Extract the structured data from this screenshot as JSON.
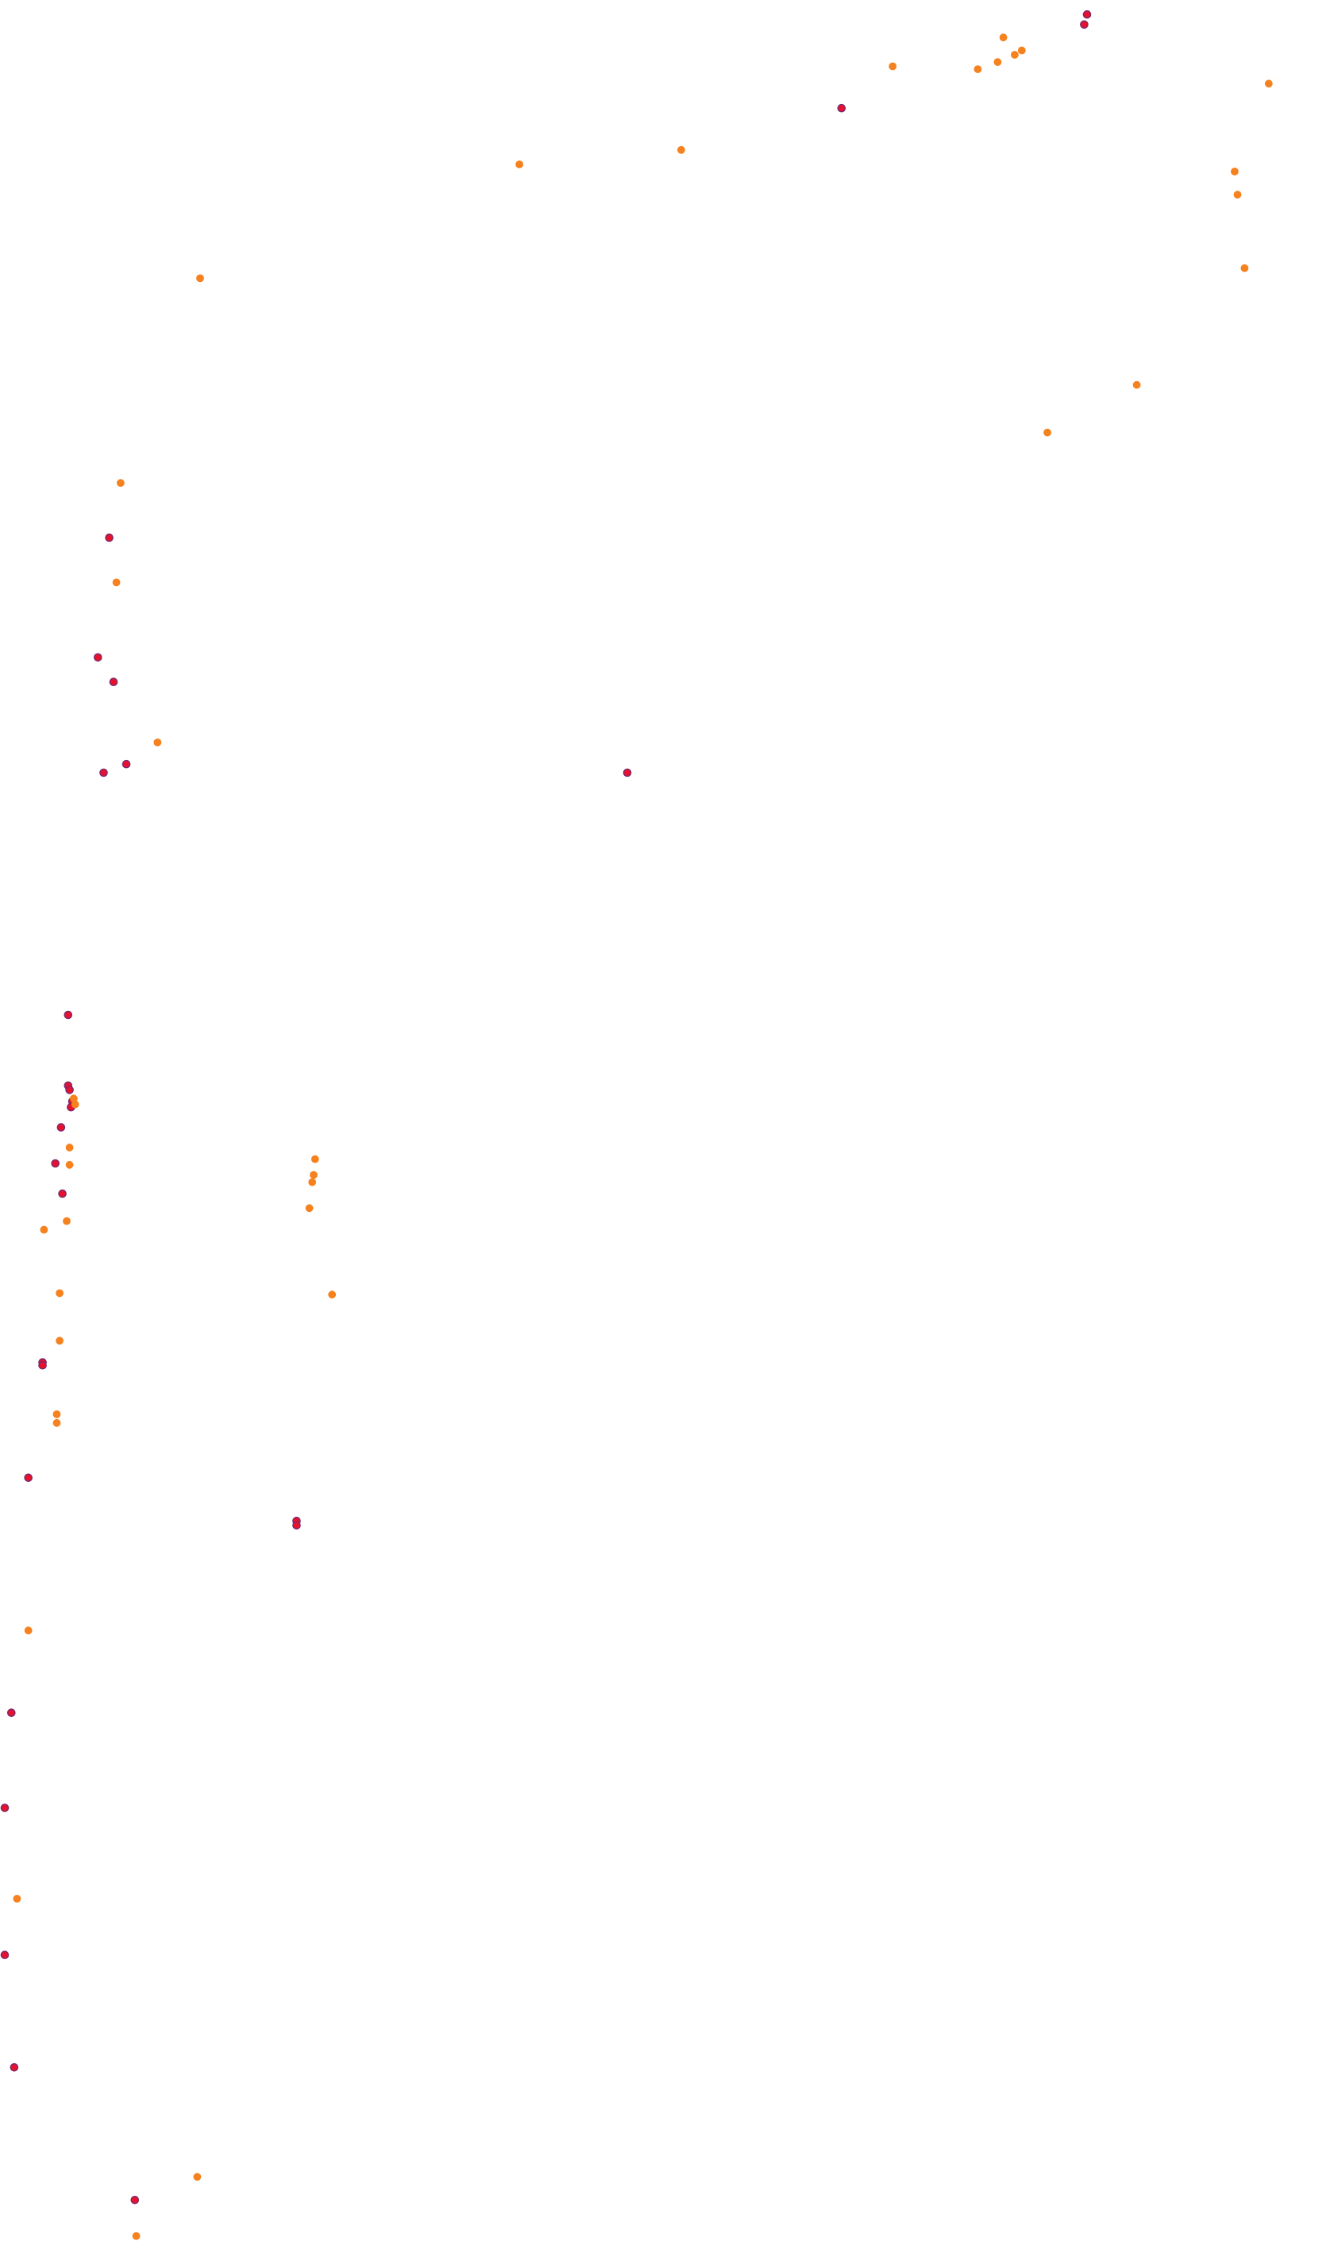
{
  "map": {
    "kind": "point-scatter",
    "background_color": "#ffffff",
    "marker_colors": {
      "red": "#e8112d",
      "orange": "#f5821f",
      "outline": "#7a2a6e"
    }
  },
  "chart_data": {
    "type": "scatter",
    "title": "",
    "xlabel": "",
    "ylabel": "",
    "xlim": [
      0,
      940
    ],
    "ylim": [
      0,
      1560
    ],
    "y_direction": "down",
    "grid": false,
    "legend": "none",
    "series": [
      {
        "color": "#e8112d",
        "points": [
          [
            766,
            10
          ],
          [
            764,
            17
          ],
          [
            593,
            75
          ],
          [
            77,
            373
          ],
          [
            69,
            456
          ],
          [
            80,
            473
          ],
          [
            89,
            530
          ],
          [
            73,
            536
          ],
          [
            442,
            536
          ],
          [
            48,
            704
          ],
          [
            48,
            753
          ],
          [
            49,
            756
          ],
          [
            51,
            764
          ],
          [
            50,
            768
          ],
          [
            43,
            782
          ],
          [
            39,
            807
          ],
          [
            44,
            828
          ],
          [
            30,
            945
          ],
          [
            30,
            947
          ],
          [
            20,
            1025
          ],
          [
            209,
            1055
          ],
          [
            209,
            1058
          ],
          [
            8,
            1188
          ],
          [
            3,
            1254
          ],
          [
            0,
            1356
          ],
          [
            10,
            1434
          ],
          [
            95,
            1526
          ]
        ]
      },
      {
        "color": "#f5821f",
        "points": [
          [
            707,
            26
          ],
          [
            720,
            35
          ],
          [
            715,
            38
          ],
          [
            703,
            43
          ],
          [
            629,
            46
          ],
          [
            689,
            48
          ],
          [
            894,
            58
          ],
          [
            480,
            104
          ],
          [
            366,
            114
          ],
          [
            870,
            119
          ],
          [
            872,
            135
          ],
          [
            141,
            193
          ],
          [
            877,
            186
          ],
          [
            801,
            267
          ],
          [
            738,
            300
          ],
          [
            85,
            335
          ],
          [
            82,
            404
          ],
          [
            111,
            515
          ],
          [
            52,
            762
          ],
          [
            53,
            766
          ],
          [
            49,
            796
          ],
          [
            49,
            808
          ],
          [
            222,
            804
          ],
          [
            221,
            815
          ],
          [
            220,
            820
          ],
          [
            218,
            838
          ],
          [
            47,
            847
          ],
          [
            31,
            853
          ],
          [
            234,
            898
          ],
          [
            42,
            897
          ],
          [
            42,
            930
          ],
          [
            40,
            981
          ],
          [
            40,
            987
          ],
          [
            20,
            1131
          ],
          [
            12,
            1317
          ],
          [
            139,
            1510
          ],
          [
            96,
            1551
          ]
        ]
      }
    ]
  }
}
